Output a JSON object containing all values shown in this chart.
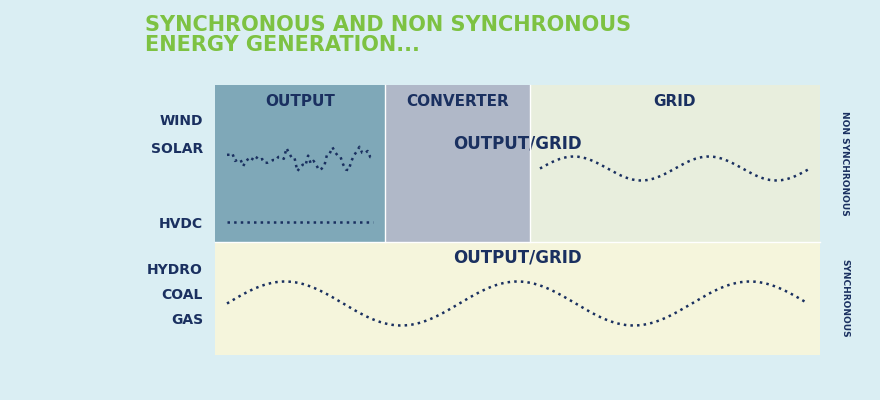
{
  "title_line1": "SYNCHRONOUS AND NON SYNCHRONOUS",
  "title_line2": "ENERGY GENERATION...",
  "title_color": "#7dc242",
  "background_color": "#daeef3",
  "output_box_color": "#7fa8b8",
  "converter_box_color": "#b0b8c8",
  "grid_box_color": "#e8eedd",
  "sync_box_color": "#f5f5dc",
  "header_text_color": "#1a3060",
  "label_text_color": "#1a3060",
  "non_sync_label": "NON SYNCHRONOUS",
  "sync_label": "SYNCHRONOUS",
  "col_headers": [
    "OUTPUT",
    "CONVERTER",
    "GRID"
  ],
  "row_labels_top": [
    "WIND",
    "SOLAR",
    "HVDC"
  ],
  "row_labels_bottom": [
    "HYDRO",
    "COAL",
    "GAS"
  ],
  "output_grid_label": "OUTPUT/GRID",
  "dot_color": "#1a3060",
  "fig_width": 8.8,
  "fig_height": 4.0,
  "dpi": 100
}
